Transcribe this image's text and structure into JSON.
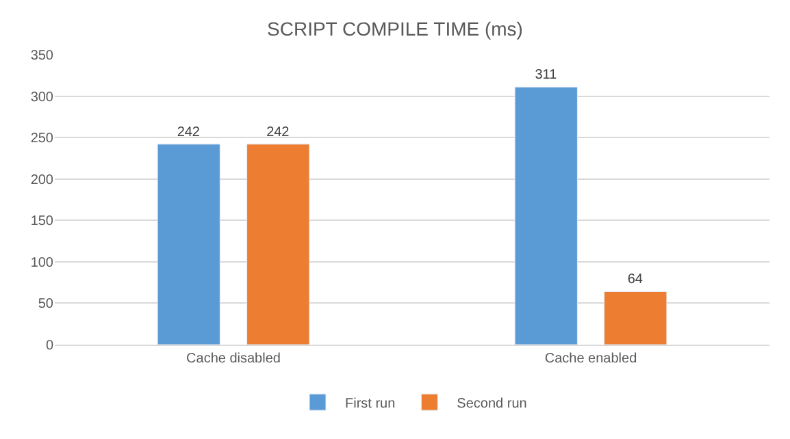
{
  "chart_data": {
    "type": "bar",
    "title": "SCRIPT COMPILE TIME (ms)",
    "categories": [
      "Cache disabled",
      "Cache enabled"
    ],
    "series": [
      {
        "name": "First run",
        "color": "#5b9bd5",
        "values": [
          242,
          311
        ]
      },
      {
        "name": "Second run",
        "color": "#ed7d31",
        "values": [
          242,
          64
        ]
      }
    ],
    "ylim": [
      0,
      350
    ],
    "yticks": [
      0,
      50,
      100,
      150,
      200,
      250,
      300,
      350
    ],
    "grid": "y",
    "legend": "bottom",
    "data_labels": true
  }
}
